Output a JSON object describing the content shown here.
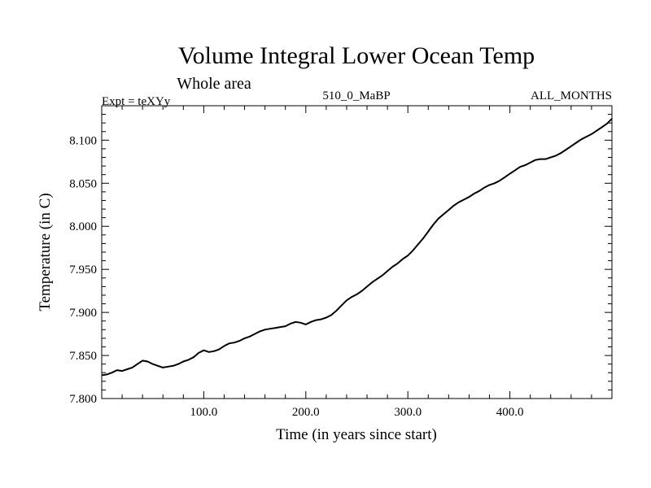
{
  "chart_data": {
    "type": "line",
    "title": "Volume Integral Lower Ocean Temp",
    "subtitle": "Whole area",
    "left_label": "Expt = teXYy",
    "center_label": "510_0_MaBP",
    "right_label": "ALL_MONTHS",
    "xlabel": "Time (in years since start)",
    "ylabel": "Temperature (in C)",
    "xlim": [
      0,
      500
    ],
    "ylim": [
      7.8,
      8.14
    ],
    "xticks": [
      100,
      200,
      300,
      400
    ],
    "xtick_labels": [
      "100.0",
      "200.0",
      "300.0",
      "400.0"
    ],
    "yticks": [
      7.8,
      7.85,
      7.9,
      7.95,
      8.0,
      8.05,
      8.1
    ],
    "ytick_labels": [
      "7.800",
      "7.850",
      "7.900",
      "7.950",
      "8.000",
      "8.050",
      "8.100"
    ],
    "grid": false,
    "series": [
      {
        "color": "#000000",
        "x": [
          0,
          5,
          10,
          15,
          20,
          25,
          30,
          35,
          40,
          45,
          50,
          55,
          60,
          65,
          70,
          75,
          80,
          85,
          90,
          95,
          100,
          105,
          110,
          115,
          120,
          125,
          130,
          135,
          140,
          145,
          150,
          155,
          160,
          165,
          170,
          175,
          180,
          185,
          190,
          195,
          200,
          205,
          210,
          215,
          220,
          225,
          230,
          235,
          240,
          245,
          250,
          255,
          260,
          265,
          270,
          275,
          280,
          285,
          290,
          295,
          300,
          305,
          310,
          315,
          320,
          325,
          330,
          335,
          340,
          345,
          350,
          355,
          360,
          365,
          370,
          375,
          380,
          385,
          390,
          395,
          400,
          405,
          410,
          415,
          420,
          425,
          430,
          435,
          440,
          445,
          450,
          455,
          460,
          465,
          470,
          475,
          480,
          485,
          490,
          495,
          500
        ],
        "y": [
          7.827,
          7.828,
          7.83,
          7.833,
          7.832,
          7.834,
          7.836,
          7.84,
          7.844,
          7.843,
          7.84,
          7.838,
          7.836,
          7.837,
          7.838,
          7.84,
          7.843,
          7.845,
          7.848,
          7.853,
          7.856,
          7.854,
          7.855,
          7.857,
          7.861,
          7.864,
          7.865,
          7.867,
          7.87,
          7.872,
          7.875,
          7.878,
          7.88,
          7.881,
          7.882,
          7.883,
          7.884,
          7.887,
          7.889,
          7.888,
          7.886,
          7.889,
          7.891,
          7.892,
          7.894,
          7.897,
          7.902,
          7.908,
          7.914,
          7.918,
          7.921,
          7.925,
          7.93,
          7.935,
          7.939,
          7.943,
          7.948,
          7.953,
          7.957,
          7.962,
          7.966,
          7.972,
          7.979,
          7.986,
          7.994,
          8.002,
          8.009,
          8.014,
          8.019,
          8.024,
          8.028,
          8.031,
          8.034,
          8.038,
          8.041,
          8.045,
          8.048,
          8.05,
          8.053,
          8.057,
          8.061,
          8.065,
          8.069,
          8.071,
          8.074,
          8.077,
          8.078,
          8.078,
          8.08,
          8.082,
          8.085,
          8.089,
          8.093,
          8.097,
          8.101,
          8.104,
          8.107,
          8.111,
          8.115,
          8.119,
          8.125
        ]
      }
    ]
  }
}
